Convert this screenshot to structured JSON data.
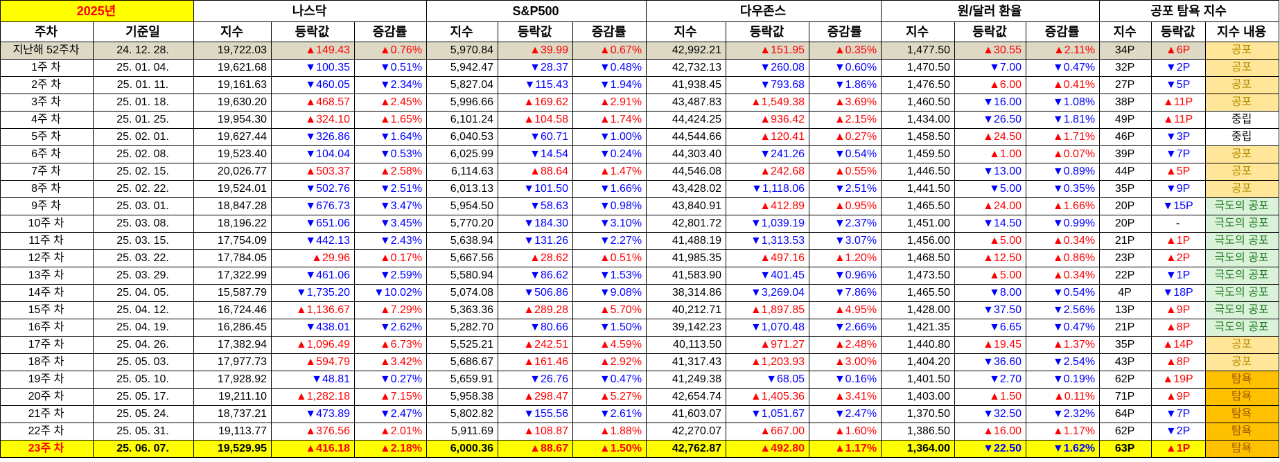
{
  "header": {
    "year": "2025년",
    "groups": [
      "나스닥",
      "S&P500",
      "다우존스",
      "원/달러 환율",
      "공포 탐욕 지수"
    ],
    "columns": [
      "주차",
      "기준일",
      "지수",
      "등락값",
      "증감률",
      "지수",
      "등락값",
      "증감률",
      "지수",
      "등락값",
      "증감률",
      "지수",
      "등락값",
      "증감률",
      "지수",
      "등락값",
      "지수 내용"
    ]
  },
  "colors": {
    "up": "#ff0000",
    "down": "#0000ff",
    "highlight": "#ffff00",
    "fear": "#ffe699",
    "extreme_fear": "#d9f2d9",
    "greed": "#ffc000",
    "baseline": "#ddd9c4"
  },
  "rows": [
    {
      "week": "지난해 52주차",
      "date": "24. 12. 28.",
      "nasdaq": [
        "19,722.03",
        "▲149.43",
        "▲0.76%"
      ],
      "sp500": [
        "5,970.84",
        "▲39.99",
        "▲0.67%"
      ],
      "dow": [
        "42,992.21",
        "▲151.95",
        "▲0.35%"
      ],
      "krw": [
        "1,477.50",
        "▲30.55",
        "▲2.11%"
      ],
      "fg": [
        "34P",
        "▲6P",
        "공포"
      ]
    },
    {
      "week": "1주 차",
      "date": "25. 01. 04.",
      "nasdaq": [
        "19,621.68",
        "▼100.35",
        "▼0.51%"
      ],
      "sp500": [
        "5,942.47",
        "▼28.37",
        "▼0.48%"
      ],
      "dow": [
        "42,732.13",
        "▼260.08",
        "▼0.60%"
      ],
      "krw": [
        "1,470.50",
        "▼7.00",
        "▼0.47%"
      ],
      "fg": [
        "32P",
        "▼2P",
        "공포"
      ]
    },
    {
      "week": "2주 차",
      "date": "25. 01. 11.",
      "nasdaq": [
        "19,161.63",
        "▼460.05",
        "▼2.34%"
      ],
      "sp500": [
        "5,827.04",
        "▼115.43",
        "▼1.94%"
      ],
      "dow": [
        "41,938.45",
        "▼793.68",
        "▼1.86%"
      ],
      "krw": [
        "1,476.50",
        "▲6.00",
        "▲0.41%"
      ],
      "fg": [
        "27P",
        "▼5P",
        "공포"
      ]
    },
    {
      "week": "3주 차",
      "date": "25. 01. 18.",
      "nasdaq": [
        "19,630.20",
        "▲468.57",
        "▲2.45%"
      ],
      "sp500": [
        "5,996.66",
        "▲169.62",
        "▲2.91%"
      ],
      "dow": [
        "43,487.83",
        "▲1,549.38",
        "▲3.69%"
      ],
      "krw": [
        "1,460.50",
        "▼16.00",
        "▼1.08%"
      ],
      "fg": [
        "38P",
        "▲11P",
        "공포"
      ]
    },
    {
      "week": "4주 차",
      "date": "25. 01. 25.",
      "nasdaq": [
        "19,954.30",
        "▲324.10",
        "▲1.65%"
      ],
      "sp500": [
        "6,101.24",
        "▲104.58",
        "▲1.74%"
      ],
      "dow": [
        "44,424.25",
        "▲936.42",
        "▲2.15%"
      ],
      "krw": [
        "1,434.00",
        "▼26.50",
        "▼1.81%"
      ],
      "fg": [
        "49P",
        "▲11P",
        "중립"
      ]
    },
    {
      "week": "5주 차",
      "date": "25. 02. 01.",
      "nasdaq": [
        "19,627.44",
        "▼326.86",
        "▼1.64%"
      ],
      "sp500": [
        "6,040.53",
        "▼60.71",
        "▼1.00%"
      ],
      "dow": [
        "44,544.66",
        "▲120.41",
        "▲0.27%"
      ],
      "krw": [
        "1,458.50",
        "▲24.50",
        "▲1.71%"
      ],
      "fg": [
        "46P",
        "▼3P",
        "중립"
      ]
    },
    {
      "week": "6주 차",
      "date": "25. 02. 08.",
      "nasdaq": [
        "19,523.40",
        "▼104.04",
        "▼0.53%"
      ],
      "sp500": [
        "6,025.99",
        "▼14.54",
        "▼0.24%"
      ],
      "dow": [
        "44,303.40",
        "▼241.26",
        "▼0.54%"
      ],
      "krw": [
        "1,459.50",
        "▲1.00",
        "▲0.07%"
      ],
      "fg": [
        "39P",
        "▼7P",
        "공포"
      ]
    },
    {
      "week": "7주 차",
      "date": "25. 02. 15.",
      "nasdaq": [
        "20,026.77",
        "▲503.37",
        "▲2.58%"
      ],
      "sp500": [
        "6,114.63",
        "▲88.64",
        "▲1.47%"
      ],
      "dow": [
        "44,546.08",
        "▲242.68",
        "▲0.55%"
      ],
      "krw": [
        "1,446.50",
        "▼13.00",
        "▼0.89%"
      ],
      "fg": [
        "44P",
        "▲5P",
        "공포"
      ]
    },
    {
      "week": "8주 차",
      "date": "25. 02. 22.",
      "nasdaq": [
        "19,524.01",
        "▼502.76",
        "▼2.51%"
      ],
      "sp500": [
        "6,013.13",
        "▼101.50",
        "▼1.66%"
      ],
      "dow": [
        "43,428.02",
        "▼1,118.06",
        "▼2.51%"
      ],
      "krw": [
        "1,441.50",
        "▼5.00",
        "▼0.35%"
      ],
      "fg": [
        "35P",
        "▼9P",
        "공포"
      ]
    },
    {
      "week": "9주 차",
      "date": "25. 03. 01.",
      "nasdaq": [
        "18,847.28",
        "▼676.73",
        "▼3.47%"
      ],
      "sp500": [
        "5,954.50",
        "▼58.63",
        "▼0.98%"
      ],
      "dow": [
        "43,840.91",
        "▲412.89",
        "▲0.95%"
      ],
      "krw": [
        "1,465.50",
        "▲24.00",
        "▲1.66%"
      ],
      "fg": [
        "20P",
        "▼15P",
        "극도의 공포"
      ]
    },
    {
      "week": "10주 차",
      "date": "25. 03. 08.",
      "nasdaq": [
        "18,196.22",
        "▼651.06",
        "▼3.45%"
      ],
      "sp500": [
        "5,770.20",
        "▼184.30",
        "▼3.10%"
      ],
      "dow": [
        "42,801.72",
        "▼1,039.19",
        "▼2.37%"
      ],
      "krw": [
        "1,451.00",
        "▼14.50",
        "▼0.99%"
      ],
      "fg": [
        "20P",
        "-",
        "극도의 공포"
      ]
    },
    {
      "week": "11주 차",
      "date": "25. 03. 15.",
      "nasdaq": [
        "17,754.09",
        "▼442.13",
        "▼2.43%"
      ],
      "sp500": [
        "5,638.94",
        "▼131.26",
        "▼2.27%"
      ],
      "dow": [
        "41,488.19",
        "▼1,313.53",
        "▼3.07%"
      ],
      "krw": [
        "1,456.00",
        "▲5.00",
        "▲0.34%"
      ],
      "fg": [
        "21P",
        "▲1P",
        "극도의 공포"
      ]
    },
    {
      "week": "12주 차",
      "date": "25. 03. 22.",
      "nasdaq": [
        "17,784.05",
        "▲29.96",
        "▲0.17%"
      ],
      "sp500": [
        "5,667.56",
        "▲28.62",
        "▲0.51%"
      ],
      "dow": [
        "41,985.35",
        "▲497.16",
        "▲1.20%"
      ],
      "krw": [
        "1,468.50",
        "▲12.50",
        "▲0.86%"
      ],
      "fg": [
        "23P",
        "▲2P",
        "극도의 공포"
      ]
    },
    {
      "week": "13주 차",
      "date": "25. 03. 29.",
      "nasdaq": [
        "17,322.99",
        "▼461.06",
        "▼2.59%"
      ],
      "sp500": [
        "5,580.94",
        "▼86.62",
        "▼1.53%"
      ],
      "dow": [
        "41,583.90",
        "▼401.45",
        "▼0.96%"
      ],
      "krw": [
        "1,473.50",
        "▲5.00",
        "▲0.34%"
      ],
      "fg": [
        "22P",
        "▼1P",
        "극도의 공포"
      ]
    },
    {
      "week": "14주 차",
      "date": "25. 04. 05.",
      "nasdaq": [
        "15,587.79",
        "▼1,735.20",
        "▼10.02%"
      ],
      "sp500": [
        "5,074.08",
        "▼506.86",
        "▼9.08%"
      ],
      "dow": [
        "38,314.86",
        "▼3,269.04",
        "▼7.86%"
      ],
      "krw": [
        "1,465.50",
        "▼8.00",
        "▼0.54%"
      ],
      "fg": [
        "4P",
        "▼18P",
        "극도의 공포"
      ]
    },
    {
      "week": "15주 차",
      "date": "25. 04. 12.",
      "nasdaq": [
        "16,724.46",
        "▲1,136.67",
        "▲7.29%"
      ],
      "sp500": [
        "5,363.36",
        "▲289.28",
        "▲5.70%"
      ],
      "dow": [
        "40,212.71",
        "▲1,897.85",
        "▲4.95%"
      ],
      "krw": [
        "1,428.00",
        "▼37.50",
        "▼2.56%"
      ],
      "fg": [
        "13P",
        "▲9P",
        "극도의 공포"
      ]
    },
    {
      "week": "16주 차",
      "date": "25. 04. 19.",
      "nasdaq": [
        "16,286.45",
        "▼438.01",
        "▼2.62%"
      ],
      "sp500": [
        "5,282.70",
        "▼80.66",
        "▼1.50%"
      ],
      "dow": [
        "39,142.23",
        "▼1,070.48",
        "▼2.66%"
      ],
      "krw": [
        "1,421.35",
        "▼6.65",
        "▼0.47%"
      ],
      "fg": [
        "21P",
        "▲8P",
        "극도의 공포"
      ]
    },
    {
      "week": "17주 차",
      "date": "25. 04. 26.",
      "nasdaq": [
        "17,382.94",
        "▲1,096.49",
        "▲6.73%"
      ],
      "sp500": [
        "5,525.21",
        "▲242.51",
        "▲4.59%"
      ],
      "dow": [
        "40,113.50",
        "▲971.27",
        "▲2.48%"
      ],
      "krw": [
        "1,440.80",
        "▲19.45",
        "▲1.37%"
      ],
      "fg": [
        "35P",
        "▲14P",
        "공포"
      ]
    },
    {
      "week": "18주 차",
      "date": "25. 05. 03.",
      "nasdaq": [
        "17,977.73",
        "▲594.79",
        "▲3.42%"
      ],
      "sp500": [
        "5,686.67",
        "▲161.46",
        "▲2.92%"
      ],
      "dow": [
        "41,317.43",
        "▲1,203.93",
        "▲3.00%"
      ],
      "krw": [
        "1,404.20",
        "▼36.60",
        "▼2.54%"
      ],
      "fg": [
        "43P",
        "▲8P",
        "공포"
      ]
    },
    {
      "week": "19주 차",
      "date": "25. 05. 10.",
      "nasdaq": [
        "17,928.92",
        "▼48.81",
        "▼0.27%"
      ],
      "sp500": [
        "5,659.91",
        "▼26.76",
        "▼0.47%"
      ],
      "dow": [
        "41,249.38",
        "▼68.05",
        "▼0.16%"
      ],
      "krw": [
        "1,401.50",
        "▼2.70",
        "▼0.19%"
      ],
      "fg": [
        "62P",
        "▲19P",
        "탐욕"
      ]
    },
    {
      "week": "20주 차",
      "date": "25. 05. 17.",
      "nasdaq": [
        "19,211.10",
        "▲1,282.18",
        "▲7.15%"
      ],
      "sp500": [
        "5,958.38",
        "▲298.47",
        "▲5.27%"
      ],
      "dow": [
        "42,654.74",
        "▲1,405.36",
        "▲3.41%"
      ],
      "krw": [
        "1,403.00",
        "▲1.50",
        "▲0.11%"
      ],
      "fg": [
        "71P",
        "▲9P",
        "탐욕"
      ]
    },
    {
      "week": "21주 차",
      "date": "25. 05. 24.",
      "nasdaq": [
        "18,737.21",
        "▼473.89",
        "▼2.47%"
      ],
      "sp500": [
        "5,802.82",
        "▼155.56",
        "▼2.61%"
      ],
      "dow": [
        "41,603.07",
        "▼1,051.67",
        "▼2.47%"
      ],
      "krw": [
        "1,370.50",
        "▼32.50",
        "▼2.32%"
      ],
      "fg": [
        "64P",
        "▼7P",
        "탐욕"
      ]
    },
    {
      "week": "22주 차",
      "date": "25. 05. 31.",
      "nasdaq": [
        "19,113.77",
        "▲376.56",
        "▲2.01%"
      ],
      "sp500": [
        "5,911.69",
        "▲108.87",
        "▲1.88%"
      ],
      "dow": [
        "42,270.07",
        "▲667.00",
        "▲1.60%"
      ],
      "krw": [
        "1,386.50",
        "▲16.00",
        "▲1.17%"
      ],
      "fg": [
        "62P",
        "▼2P",
        "탐욕"
      ]
    },
    {
      "week": "23주 차",
      "date": "25. 06. 07.",
      "nasdaq": [
        "19,529.95",
        "▲416.18",
        "▲2.18%"
      ],
      "sp500": [
        "6,000.36",
        "▲88.67",
        "▲1.50%"
      ],
      "dow": [
        "42,762.87",
        "▲492.80",
        "▲1.17%"
      ],
      "krw": [
        "1,364.00",
        "▼22.50",
        "▼1.62%"
      ],
      "fg": [
        "63P",
        "▲1P",
        "탐욕"
      ]
    }
  ]
}
